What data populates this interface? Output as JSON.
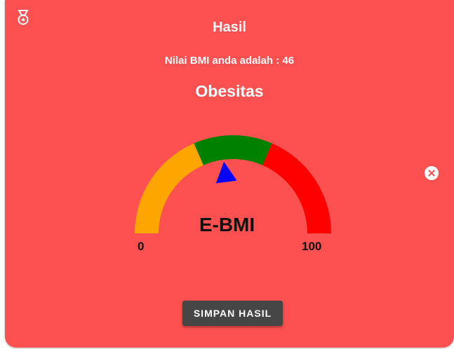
{
  "colors": {
    "background": "#fd5050",
    "gauge_low": "#ffa500",
    "gauge_normal": "#008000",
    "gauge_high": "#ff0000",
    "needle": "#0000ff"
  },
  "header": {
    "icon": "medal-icon",
    "title": "Hasil"
  },
  "result": {
    "bmi_text": "Nilai BMI anda adalah : 46",
    "category": "Obesitas"
  },
  "gauge": {
    "label": "E-BMI",
    "min_label": "0",
    "max_label": "100",
    "value": 46,
    "min": 0,
    "max": 100,
    "segments": [
      {
        "from": 0,
        "to": 37
      },
      {
        "from": 37,
        "to": 63
      },
      {
        "from": 63,
        "to": 100
      }
    ]
  },
  "close_icon": "close-icon",
  "actions": {
    "save_label": "SIMPAN HASIL"
  }
}
